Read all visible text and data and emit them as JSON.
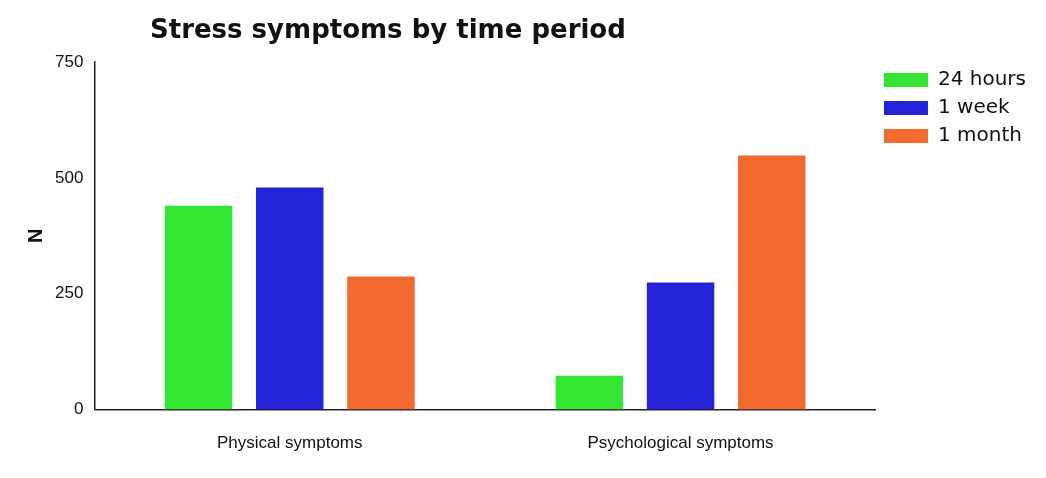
{
  "chart_data": {
    "type": "bar",
    "title": "Stress symptoms by time period",
    "ylabel": "N",
    "categories": [
      "Physical symptoms",
      "Psychological symptoms"
    ],
    "series": [
      {
        "name": "24 hours",
        "color": "#33e633",
        "values": [
          440,
          73
        ]
      },
      {
        "name": "1 week",
        "color": "#2323d8",
        "values": [
          479,
          274
        ]
      },
      {
        "name": "1 month",
        "color": "#f26a2e",
        "values": [
          287,
          548
        ]
      }
    ],
    "ylim": [
      0,
      750
    ],
    "yticks": [
      0,
      250,
      500,
      750
    ],
    "grid": false,
    "legend": "top right"
  }
}
